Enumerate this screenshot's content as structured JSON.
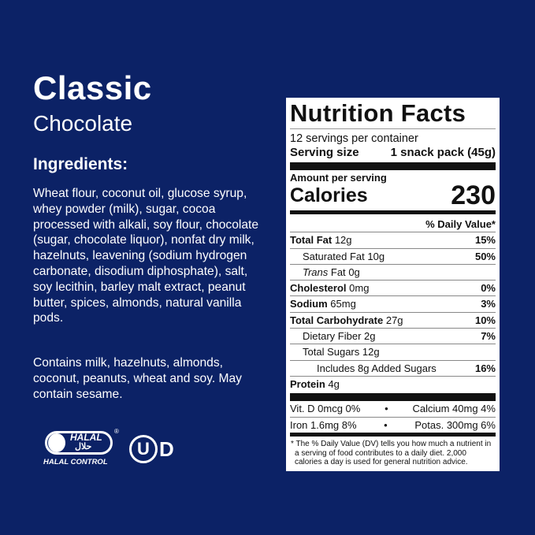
{
  "product": {
    "title": "Classic",
    "subtitle": "Chocolate"
  },
  "ingredients": {
    "heading": "Ingredients:",
    "text": "Wheat flour, coconut oil, glucose syrup, whey powder (milk), sugar, cocoa processed with alkali, soy flour, chocolate (sugar, chocolate liquor), nonfat dry milk, hazelnuts, leavening (sodium hydrogen carbonate, disodium diphosphate), salt, soy lecithin, barley malt extract, peanut butter, spices, almonds, natural vanilla pods.",
    "allergens": "Contains milk, hazelnuts, almonds, coconut, peanuts, wheat and soy. May contain sesame."
  },
  "logos": {
    "halal": "HALAL",
    "halal_arabic": "حلال",
    "halal_control": "HALAL CONTROL",
    "kosher": "UD"
  },
  "nutrition": {
    "title": "Nutrition Facts",
    "servings": "12 servings per container",
    "serving_size_label": "Serving size",
    "serving_size_value": "1 snack pack (45g)",
    "amount_per_serving": "Amount per serving",
    "calories_label": "Calories",
    "calories": "230",
    "dv_header": "% Daily Value*",
    "rows": [
      {
        "label": "Total Fat",
        "amount": "12g",
        "dv": "15%"
      },
      {
        "label": "Saturated Fat",
        "amount": "10g",
        "dv": "50%"
      },
      {
        "label": "Trans",
        "label2": "Fat",
        "amount": "0g",
        "dv": ""
      },
      {
        "label": "Cholesterol",
        "amount": "0mg",
        "dv": "0%"
      },
      {
        "label": "Sodium",
        "amount": "65mg",
        "dv": "3%"
      },
      {
        "label": "Total Carbohydrate",
        "amount": "27g",
        "dv": "10%"
      },
      {
        "label": "Dietary Fiber",
        "amount": "2g",
        "dv": "7%"
      },
      {
        "label": "Total Sugars",
        "amount": "12g",
        "dv": ""
      },
      {
        "label": "Includes 8g Added Sugars",
        "amount": "",
        "dv": "16%"
      },
      {
        "label": "Protein",
        "amount": "4g",
        "dv": ""
      }
    ],
    "micros": [
      {
        "left": "Vit. D 0mcg 0%",
        "right": "Calcium 40mg 4%"
      },
      {
        "left": "Iron 1.6mg 8%",
        "right": "Potas. 300mg 6%"
      }
    ],
    "bullet": "•",
    "footnote": "* The % Daily Value (DV) tells you how much a nutrient in a serving of food contributes to a daily diet. 2,000 calories a day is used for general nutrition advice."
  }
}
